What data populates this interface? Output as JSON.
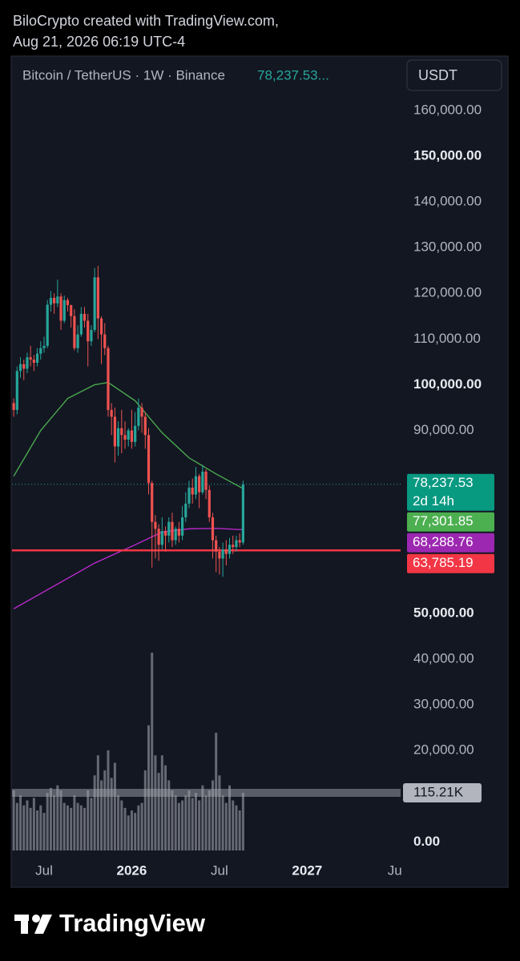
{
  "header": {
    "line1": "BiloCrypto created with TradingView.com,",
    "line2": "Aug 21, 2026 06:19 UTC-4"
  },
  "chart_data": {
    "type": "candlestick",
    "symbol": "Bitcoin / TetherUS · 1W · Binance",
    "symbol_price": "78,237.53...",
    "currency": "USDT",
    "up_color": "#26a69a",
    "down_color": "#ef5350",
    "open": [
      96000,
      94500,
      103000,
      104500,
      103500,
      106000,
      105500,
      104800,
      106800,
      108000,
      108500,
      117500,
      119000,
      117800,
      119300,
      114000,
      118500,
      117400,
      115000,
      108000,
      111000,
      115500,
      114000,
      109500,
      112000,
      123500,
      114500,
      111000,
      108000,
      94500,
      93000,
      86500,
      90500,
      89000,
      88000,
      90000,
      87500,
      91000,
      95000,
      93000,
      89000,
      78500,
      70000,
      68500,
      65000,
      68000,
      67000,
      70000,
      66000,
      68500,
      67000,
      71000,
      74000,
      77500,
      76000,
      80000,
      76500,
      81000,
      77000,
      71000,
      66000,
      63500,
      62000,
      64000,
      63000,
      65000,
      64500,
      66000,
      65500
    ],
    "high": [
      97000,
      104000,
      106000,
      105500,
      107000,
      108500,
      106500,
      108000,
      109500,
      110500,
      118500,
      120500,
      120000,
      123000,
      120000,
      119500,
      119000,
      117500,
      116500,
      113000,
      117000,
      117000,
      115500,
      113000,
      125500,
      126000,
      115000,
      113500,
      108500,
      96000,
      95000,
      92000,
      94500,
      92000,
      90500,
      94500,
      94000,
      97000,
      96000,
      94000,
      90500,
      79000,
      71500,
      69500,
      71000,
      69000,
      71000,
      72000,
      69000,
      70000,
      73500,
      76500,
      79000,
      79500,
      82000,
      80500,
      82500,
      81500,
      78000,
      72000,
      67000,
      64500,
      65500,
      66000,
      66500,
      67000,
      67000,
      67500,
      79000
    ],
    "low": [
      93000,
      93500,
      101500,
      101000,
      102500,
      104000,
      103000,
      104000,
      105500,
      107000,
      108000,
      116000,
      115500,
      117000,
      112000,
      113500,
      116000,
      112500,
      107500,
      107000,
      110500,
      112500,
      104000,
      108500,
      111500,
      110000,
      104500,
      106500,
      93000,
      89000,
      83000,
      84500,
      85000,
      86000,
      86500,
      86000,
      86500,
      90000,
      89500,
      86000,
      76000,
      60000,
      62000,
      61500,
      64000,
      63500,
      65500,
      64500,
      65000,
      65500,
      66000,
      70000,
      73000,
      74000,
      75000,
      73000,
      76000,
      75000,
      70000,
      62000,
      59000,
      58500,
      58000,
      60500,
      62000,
      63000,
      63500,
      64500,
      65000
    ],
    "close": [
      94500,
      103000,
      104500,
      103500,
      106000,
      105500,
      104800,
      106800,
      108000,
      108500,
      117500,
      119000,
      117800,
      119300,
      114000,
      118500,
      117400,
      115000,
      108000,
      111000,
      115500,
      114000,
      109500,
      112000,
      123500,
      114500,
      111000,
      108000,
      94500,
      93000,
      86500,
      90500,
      89000,
      88000,
      90000,
      87500,
      91000,
      95000,
      93000,
      89000,
      78500,
      70000,
      68500,
      65000,
      68000,
      67000,
      70000,
      66000,
      68500,
      67000,
      71000,
      74000,
      77500,
      76000,
      80000,
      76500,
      81000,
      77000,
      71000,
      66000,
      63500,
      62000,
      64000,
      63000,
      65000,
      64500,
      66000,
      65500,
      78237.53
    ],
    "volume": [
      120000,
      95000,
      110000,
      90000,
      100000,
      85000,
      105000,
      80000,
      90000,
      75000,
      115000,
      125000,
      110000,
      130000,
      120000,
      95000,
      90000,
      85000,
      110000,
      95000,
      90000,
      85000,
      120000,
      105000,
      150000,
      190000,
      140000,
      160000,
      200000,
      145000,
      175000,
      110000,
      100000,
      85000,
      70000,
      80000,
      75000,
      90000,
      95000,
      160000,
      250000,
      395000,
      190000,
      155000,
      190000,
      170000,
      140000,
      120000,
      110000,
      95000,
      100000,
      110000,
      120000,
      105000,
      115000,
      100000,
      130000,
      110000,
      120000,
      140000,
      235000,
      150000,
      110000,
      95000,
      130000,
      100000,
      90000,
      80000,
      115210
    ],
    "volume_color": "#8a8d96",
    "lines": [
      {
        "color": "#4caf50",
        "x": [
          0,
          8,
          16,
          24,
          28,
          36,
          44,
          52,
          60,
          68
        ],
        "values": [
          80000,
          90000,
          97000,
          100000,
          100500,
          96500,
          89500,
          84000,
          80500,
          77301.85
        ]
      },
      {
        "color": "#c42ad6",
        "x": [
          0,
          12,
          24,
          36,
          44,
          52,
          60,
          68
        ],
        "values": [
          51000,
          56000,
          61000,
          65000,
          67800,
          68500,
          68600,
          68288.76
        ]
      }
    ],
    "hline": {
      "value": 63785.19,
      "color": "#f23645"
    },
    "tags": [
      {
        "value": 78237.53,
        "label": "78,237.53",
        "sub": "2d 14h",
        "color": "#089981"
      },
      {
        "value": 77301.85,
        "label": "77,301.85",
        "color": "#4caf50"
      },
      {
        "value": 68288.76,
        "label": "68,288.76",
        "color": "#9c27b0"
      },
      {
        "value": 63785.19,
        "label": "63,785.19",
        "color": "#f23645"
      }
    ],
    "volume_tag": {
      "value": 115210,
      "label": "115.21K"
    },
    "xlim": [
      -0.5,
      115.9
    ],
    "xticks": [
      {
        "value": 9,
        "label": "Jul"
      },
      {
        "value": 35,
        "label": "2026",
        "bold": true
      },
      {
        "value": 61,
        "label": "Jul"
      },
      {
        "value": 87,
        "label": "2027",
        "bold": true
      },
      {
        "value": 113,
        "label": "Ju"
      }
    ],
    "ylim": [
      -3600,
      171000
    ],
    "yticks": [
      {
        "value": 160000,
        "label": "160,000.00"
      },
      {
        "value": 150000,
        "label": "150,000.00",
        "bold": true
      },
      {
        "value": 140000,
        "label": "140,000.00"
      },
      {
        "value": 130000,
        "label": "130,000.00"
      },
      {
        "value": 120000,
        "label": "120,000.00"
      },
      {
        "value": 110000,
        "label": "110,000.00"
      },
      {
        "value": 100000,
        "label": "100,000.00",
        "bold": true
      },
      {
        "value": 90000,
        "label": "90,000.00"
      },
      {
        "value": 50000,
        "label": "50,000.00",
        "bold": true
      },
      {
        "value": 40000,
        "label": "40,000.00"
      },
      {
        "value": 30000,
        "label": "30,000.00"
      },
      {
        "value": 20000,
        "label": "20,000.00"
      },
      {
        "value": 0,
        "label": "0.00",
        "bold": true
      }
    ]
  },
  "footer": {
    "brand": "TradingView"
  }
}
